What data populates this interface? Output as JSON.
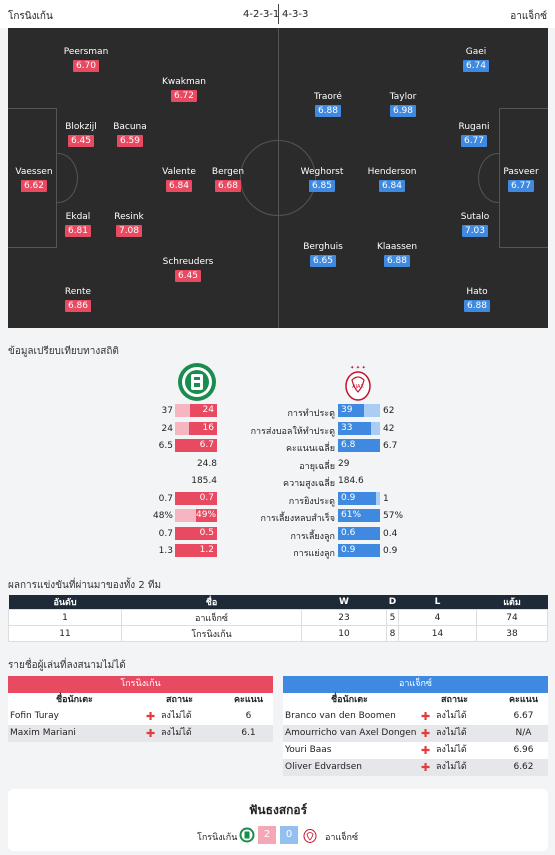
{
  "header": {
    "home_team": "โกรนิงเก้น",
    "away_team": "อาแจ็กซ์",
    "home_formation": "4-2-3-1",
    "away_formation": "4-3-3"
  },
  "colors": {
    "home": "#e84a62",
    "away": "#3f8ae0",
    "pitch": "#2b2b2b"
  },
  "lineup": {
    "home": [
      {
        "name": "Peersman",
        "rating": "6.70"
      },
      {
        "name": "Kwakman",
        "rating": "6.72"
      },
      {
        "name": "Blokzijl",
        "rating": "6.45"
      },
      {
        "name": "Bacuna",
        "rating": "6.59"
      },
      {
        "name": "Vaessen",
        "rating": "6.62"
      },
      {
        "name": "Valente",
        "rating": "6.84"
      },
      {
        "name": "Bergen",
        "rating": "6.68"
      },
      {
        "name": "Ekdal",
        "rating": "6.81"
      },
      {
        "name": "Resink",
        "rating": "7.08"
      },
      {
        "name": "Schreuders",
        "rating": "6.45"
      },
      {
        "name": "Rente",
        "rating": "6.86"
      }
    ],
    "away": [
      {
        "name": "Gaei",
        "rating": "6.74"
      },
      {
        "name": "Traoré",
        "rating": "6.88"
      },
      {
        "name": "Taylor",
        "rating": "6.98"
      },
      {
        "name": "Rugani",
        "rating": "6.77"
      },
      {
        "name": "Weghorst",
        "rating": "6.85"
      },
      {
        "name": "Henderson",
        "rating": "6.84"
      },
      {
        "name": "Pasveer",
        "rating": "6.77"
      },
      {
        "name": "Sutalo",
        "rating": "7.03"
      },
      {
        "name": "Berghuis",
        "rating": "6.65"
      },
      {
        "name": "Klaassen",
        "rating": "6.88"
      },
      {
        "name": "Hato",
        "rating": "6.88"
      }
    ]
  },
  "stats": {
    "title": "ข้อมูลเปรียบเทียบทางสถิติ",
    "rows": [
      {
        "label": "การทำประตู",
        "home_total": "37",
        "home": "24",
        "away": "39",
        "away_total": "62",
        "home_frac": 0.65,
        "away_frac": 0.63
      },
      {
        "label": "การส่งบอลให้ทำประตู",
        "home_total": "24",
        "home": "16",
        "away": "33",
        "away_total": "42",
        "home_frac": 0.67,
        "away_frac": 0.79
      },
      {
        "label": "คะแนนเฉลี่ย",
        "home_total": "6.5",
        "home": "6.7",
        "away": "6.8",
        "away_total": "6.7",
        "home_frac": 1.0,
        "away_frac": 1.0
      },
      {
        "label": "อายุเฉลี่ย",
        "home_total": "",
        "home": "24.8",
        "away": "29",
        "away_total": "",
        "home_frac": 0,
        "away_frac": 0
      },
      {
        "label": "ความสูงเฉลี่ย",
        "home_total": "",
        "home": "185.4",
        "away": "184.6",
        "away_total": "",
        "home_frac": 0,
        "away_frac": 0
      },
      {
        "label": "การยิงประตู",
        "home_total": "0.7",
        "home": "0.7",
        "away": "0.9",
        "away_total": "1",
        "home_frac": 1.0,
        "away_frac": 0.9
      },
      {
        "label": "การเลี้ยงหลบสำเร็จ",
        "home_total": "48%",
        "home": "49%",
        "away": "61%",
        "away_total": "57%",
        "home_frac": 0.49,
        "away_frac": 1.0
      },
      {
        "label": "การเลี้ยงลูก",
        "home_total": "0.7",
        "home": "0.5",
        "away": "0.6",
        "away_total": "0.4",
        "home_frac": 1.0,
        "away_frac": 1.0
      },
      {
        "label": "การแย่งลูก",
        "home_total": "1.3",
        "home": "1.2",
        "away": "0.9",
        "away_total": "0.9",
        "home_frac": 1.0,
        "away_frac": 1.0
      }
    ]
  },
  "h2h": {
    "title": "ผลการแข่งขันที่ผ่านมาของทั้ง 2 ทีม",
    "headers": [
      "อันดับ",
      "ชื่อ",
      "W",
      "D",
      "L",
      "แต้ม"
    ],
    "rows": [
      [
        "1",
        "อาแจ็กซ์",
        "23",
        "5",
        "4",
        "74"
      ],
      [
        "11",
        "โกรนิงเก้น",
        "10",
        "8",
        "14",
        "38"
      ]
    ]
  },
  "injuries": {
    "title": "รายชื่อผู้เล่นที่ลงสนามไม่ได้",
    "columns": {
      "name": "ชื่อนักเตะ",
      "status": "สถานะ",
      "rating": "คะแนน"
    },
    "home": {
      "team": "โกรนิงเก้น",
      "players": [
        {
          "name": "Fofin Turay",
          "status": "ลงไม่ได้",
          "rating": "6"
        },
        {
          "name": "Maxim Mariani",
          "status": "ลงไม่ได้",
          "rating": "6.1"
        }
      ]
    },
    "away": {
      "team": "อาแจ็กซ์",
      "players": [
        {
          "name": "Branco van den Boomen",
          "status": "ลงไม่ได้",
          "rating": "6.67"
        },
        {
          "name": "Amourricho van Axel Dongen",
          "status": "ลงไม่ได้",
          "rating": "N/A"
        },
        {
          "name": "Youri Baas",
          "status": "ลงไม่ได้",
          "rating": "6.96"
        },
        {
          "name": "Oliver Edvardsen",
          "status": "ลงไม่ได้",
          "rating": "6.62"
        }
      ]
    }
  },
  "form": {
    "title": "ฟันธงสกอร์",
    "home_team": "โกรนิงเก้น",
    "away_team": "อาแจ็กซ์",
    "home_score": "2",
    "away_score": "0"
  }
}
